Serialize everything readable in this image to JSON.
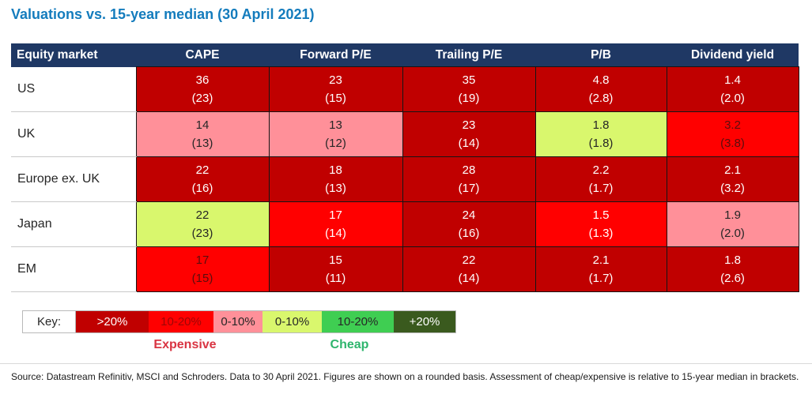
{
  "title": "Valuations vs. 15-year median (30 April 2021)",
  "colors": {
    "title_blue": "#147cbd",
    "header_navy": "#1f3864",
    "header_text": "#ffffff",
    "dark_red": "#c00000",
    "bright_red": "#ff0000",
    "pink": "#ff9099",
    "light_green": "#d9f76d",
    "bright_green": "#3fce52",
    "dark_green": "#3a5a1e",
    "white": "#ffffff",
    "ink": "#262626",
    "dark_maroon": "#5a0e0e",
    "key_red_text": "#9c0606",
    "expensive_red": "#d93442",
    "cheap_green": "#2eb56d",
    "row_divider": "#c9c9c9",
    "cell_border": "#151515",
    "hairline": "#d9d9d9",
    "source_ink": "#1a1a1a"
  },
  "table": {
    "columns": [
      "Equity market",
      "CAPE",
      "Forward P/E",
      "Trailing P/E",
      "P/B",
      "Dividend yield"
    ],
    "rows": [
      {
        "label": "US",
        "cells": [
          {
            "value": "36",
            "median": "(23)",
            "tone": "dark_red",
            "text": "white"
          },
          {
            "value": "23",
            "median": "(15)",
            "tone": "dark_red",
            "text": "white"
          },
          {
            "value": "35",
            "median": "(19)",
            "tone": "dark_red",
            "text": "white"
          },
          {
            "value": "4.8",
            "median": "(2.8)",
            "tone": "dark_red",
            "text": "white"
          },
          {
            "value": "1.4",
            "median": "(2.0)",
            "tone": "dark_red",
            "text": "white"
          }
        ]
      },
      {
        "label": "UK",
        "cells": [
          {
            "value": "14",
            "median": "(13)",
            "tone": "pink",
            "text": "ink"
          },
          {
            "value": "13",
            "median": "(12)",
            "tone": "pink",
            "text": "ink"
          },
          {
            "value": "23",
            "median": "(14)",
            "tone": "dark_red",
            "text": "white"
          },
          {
            "value": "1.8",
            "median": "(1.8)",
            "tone": "light_green",
            "text": "ink"
          },
          {
            "value": "3.2",
            "median": "(3.8)",
            "tone": "bright_red",
            "text": "dark_maroon"
          }
        ]
      },
      {
        "label": "Europe ex. UK",
        "cells": [
          {
            "value": "22",
            "median": "(16)",
            "tone": "dark_red",
            "text": "white"
          },
          {
            "value": "18",
            "median": "(13)",
            "tone": "dark_red",
            "text": "white"
          },
          {
            "value": "28",
            "median": "(17)",
            "tone": "dark_red",
            "text": "white"
          },
          {
            "value": "2.2",
            "median": "(1.7)",
            "tone": "dark_red",
            "text": "white"
          },
          {
            "value": "2.1",
            "median": "(3.2)",
            "tone": "dark_red",
            "text": "white"
          }
        ]
      },
      {
        "label": "Japan",
        "cells": [
          {
            "value": "22",
            "median": "(23)",
            "tone": "light_green",
            "text": "ink"
          },
          {
            "value": "17",
            "median": "(14)",
            "tone": "bright_red",
            "text": "white"
          },
          {
            "value": "24",
            "median": "(16)",
            "tone": "dark_red",
            "text": "white"
          },
          {
            "value": "1.5",
            "median": "(1.3)",
            "tone": "bright_red",
            "text": "white"
          },
          {
            "value": "1.9",
            "median": "(2.0)",
            "tone": "pink",
            "text": "ink"
          }
        ]
      },
      {
        "label": "EM",
        "cells": [
          {
            "value": "17",
            "median": "(15)",
            "tone": "bright_red",
            "text": "dark_maroon"
          },
          {
            "value": "15",
            "median": "(11)",
            "tone": "dark_red",
            "text": "white"
          },
          {
            "value": "22",
            "median": "(14)",
            "tone": "dark_red",
            "text": "white"
          },
          {
            "value": "2.1",
            "median": "(1.7)",
            "tone": "dark_red",
            "text": "white"
          },
          {
            "value": "1.8",
            "median": "(2.6)",
            "tone": "dark_red",
            "text": "white"
          }
        ]
      }
    ]
  },
  "key": {
    "label": "Key:",
    "items": [
      {
        "label": ">20%",
        "tone": "dark_red",
        "text": "white"
      },
      {
        "label": "10-20%",
        "tone": "bright_red",
        "text": "key_red_text"
      },
      {
        "label": "0-10%",
        "tone": "pink",
        "text": "ink"
      },
      {
        "label": "0-10%",
        "tone": "light_green",
        "text": "ink"
      },
      {
        "label": "10-20%",
        "tone": "bright_green",
        "text": "ink"
      },
      {
        "label": "+20%",
        "tone": "dark_green",
        "text": "white"
      }
    ],
    "expensive_label": "Expensive",
    "cheap_label": "Cheap"
  },
  "footer": {
    "source": "Source: Datastream Refinitiv, MSCI and Schroders. Data to 30 April 2021. Figures are shown on a rounded basis. Assessment of cheap/expensive is relative to 15-year median in brackets."
  },
  "chart_data": {
    "type": "heatmap",
    "title": "Valuations vs. 15-year median (30 April 2021)",
    "columns": [
      "CAPE",
      "Forward P/E",
      "Trailing P/E",
      "P/B",
      "Dividend yield"
    ],
    "rows": [
      "US",
      "UK",
      "Europe ex. UK",
      "Japan",
      "EM"
    ],
    "values": [
      [
        36,
        23,
        35,
        4.8,
        1.4
      ],
      [
        14,
        13,
        23,
        1.8,
        3.2
      ],
      [
        22,
        18,
        28,
        2.2,
        2.1
      ],
      [
        22,
        17,
        24,
        1.5,
        1.9
      ],
      [
        17,
        15,
        22,
        2.1,
        1.8
      ]
    ],
    "medians_15yr": [
      [
        23,
        15,
        19,
        2.8,
        2.0
      ],
      [
        13,
        12,
        14,
        1.8,
        3.8
      ],
      [
        16,
        13,
        17,
        1.7,
        3.2
      ],
      [
        23,
        14,
        16,
        1.3,
        2.0
      ],
      [
        15,
        11,
        14,
        1.7,
        2.6
      ]
    ],
    "legend_bins": [
      ">20%",
      "10-20%",
      "0-10%",
      "0-10%",
      "10-20%",
      "+20%"
    ],
    "legend_groups": [
      "Expensive",
      "Cheap"
    ],
    "legend_position": "bottom-left",
    "grid": true
  }
}
